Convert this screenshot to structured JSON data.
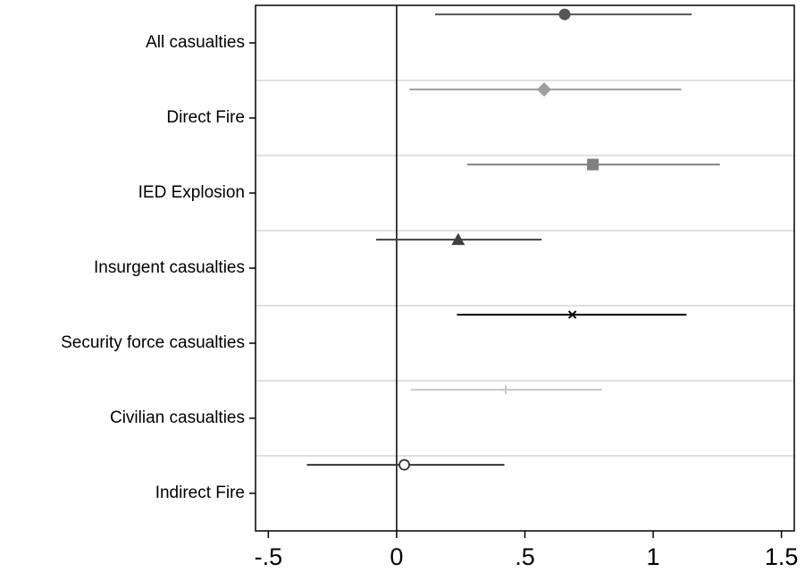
{
  "chart_data": {
    "type": "scatter",
    "subtype": "coefficient-plot",
    "title": "",
    "xlabel": "",
    "ylabel": "",
    "xlim": [
      -0.55,
      1.55
    ],
    "xticks": [
      -0.5,
      0,
      0.5,
      1,
      1.5
    ],
    "xtick_labels": [
      "-.5",
      "0",
      ".5",
      "1",
      "1.5"
    ],
    "reference_line_x": 0,
    "grid": "horizontal band separators",
    "legend": "none",
    "categories": [
      "All casualties",
      "Direct Fire",
      "IED Explosion",
      "Insurgent casualties",
      "Security force casualties",
      "Civilian casualties",
      "Indirect Fire"
    ],
    "series": [
      {
        "category": "All casualties",
        "estimate": 0.655,
        "ci": [
          0.15,
          1.15
        ],
        "marker": "circle-filled",
        "color": "#555555"
      },
      {
        "category": "Direct Fire",
        "estimate": 0.575,
        "ci": [
          0.05,
          1.11
        ],
        "marker": "diamond-filled",
        "color": "#9e9e9e"
      },
      {
        "category": "IED Explosion",
        "estimate": 0.765,
        "ci": [
          0.275,
          1.26
        ],
        "marker": "square-filled",
        "color": "#808080"
      },
      {
        "category": "Insurgent casualties",
        "estimate": 0.24,
        "ci": [
          -0.08,
          0.565
        ],
        "marker": "triangle-filled",
        "color": "#404040"
      },
      {
        "category": "Security force casualties",
        "estimate": 0.685,
        "ci": [
          0.235,
          1.13
        ],
        "marker": "x",
        "color": "#000000"
      },
      {
        "category": "Civilian casualties",
        "estimate": 0.425,
        "ci": [
          0.055,
          0.8
        ],
        "marker": "plus",
        "color": "#c8c8c8"
      },
      {
        "category": "Indirect Fire",
        "estimate": 0.03,
        "ci": [
          -0.35,
          0.42
        ],
        "marker": "circle-hollow",
        "color": "#333333"
      }
    ],
    "colors": {
      "frame": "#000000",
      "separator": "#e0e0e0",
      "zero_line": "#000000"
    }
  }
}
